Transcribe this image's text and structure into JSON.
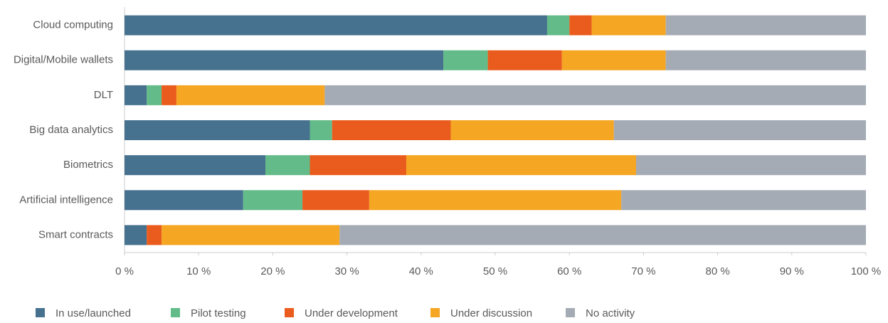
{
  "chart_data": {
    "type": "stacked-bar-horizontal",
    "categories": [
      "Cloud computing",
      "Digital/Mobile wallets",
      "DLT",
      "Big data analytics",
      "Biometrics",
      "Artificial intelligence",
      "Smart contracts"
    ],
    "series": [
      {
        "name": "In use/launched",
        "color": "#46718f",
        "values": [
          57,
          43,
          3,
          25,
          19,
          16,
          3
        ]
      },
      {
        "name": "Pilot testing",
        "color": "#62bb88",
        "values": [
          3,
          6,
          2,
          3,
          6,
          8,
          0
        ]
      },
      {
        "name": "Under development",
        "color": "#ea5c1d",
        "values": [
          3,
          10,
          2,
          16,
          13,
          9,
          2
        ]
      },
      {
        "name": "Under discussion",
        "color": "#f5a623",
        "values": [
          10,
          14,
          20,
          22,
          31,
          34,
          24
        ]
      },
      {
        "name": "No activity",
        "color": "#a5abb5",
        "values": [
          27,
          27,
          73,
          34,
          31,
          33,
          71
        ]
      }
    ],
    "xlim": [
      0,
      100
    ],
    "xticks": [
      {
        "value": 0,
        "label": "0 %"
      },
      {
        "value": 10,
        "label": "10 %"
      },
      {
        "value": 20,
        "label": "20 %"
      },
      {
        "value": 30,
        "label": "30 %"
      },
      {
        "value": 40,
        "label": "40 %"
      },
      {
        "value": 50,
        "label": "50 %"
      },
      {
        "value": 60,
        "label": "60 %"
      },
      {
        "value": 70,
        "label": "70 %"
      },
      {
        "value": 80,
        "label": "80 %"
      },
      {
        "value": 90,
        "label": "90 %"
      },
      {
        "value": 100,
        "label": "100 %"
      }
    ],
    "legend": "bottom"
  }
}
